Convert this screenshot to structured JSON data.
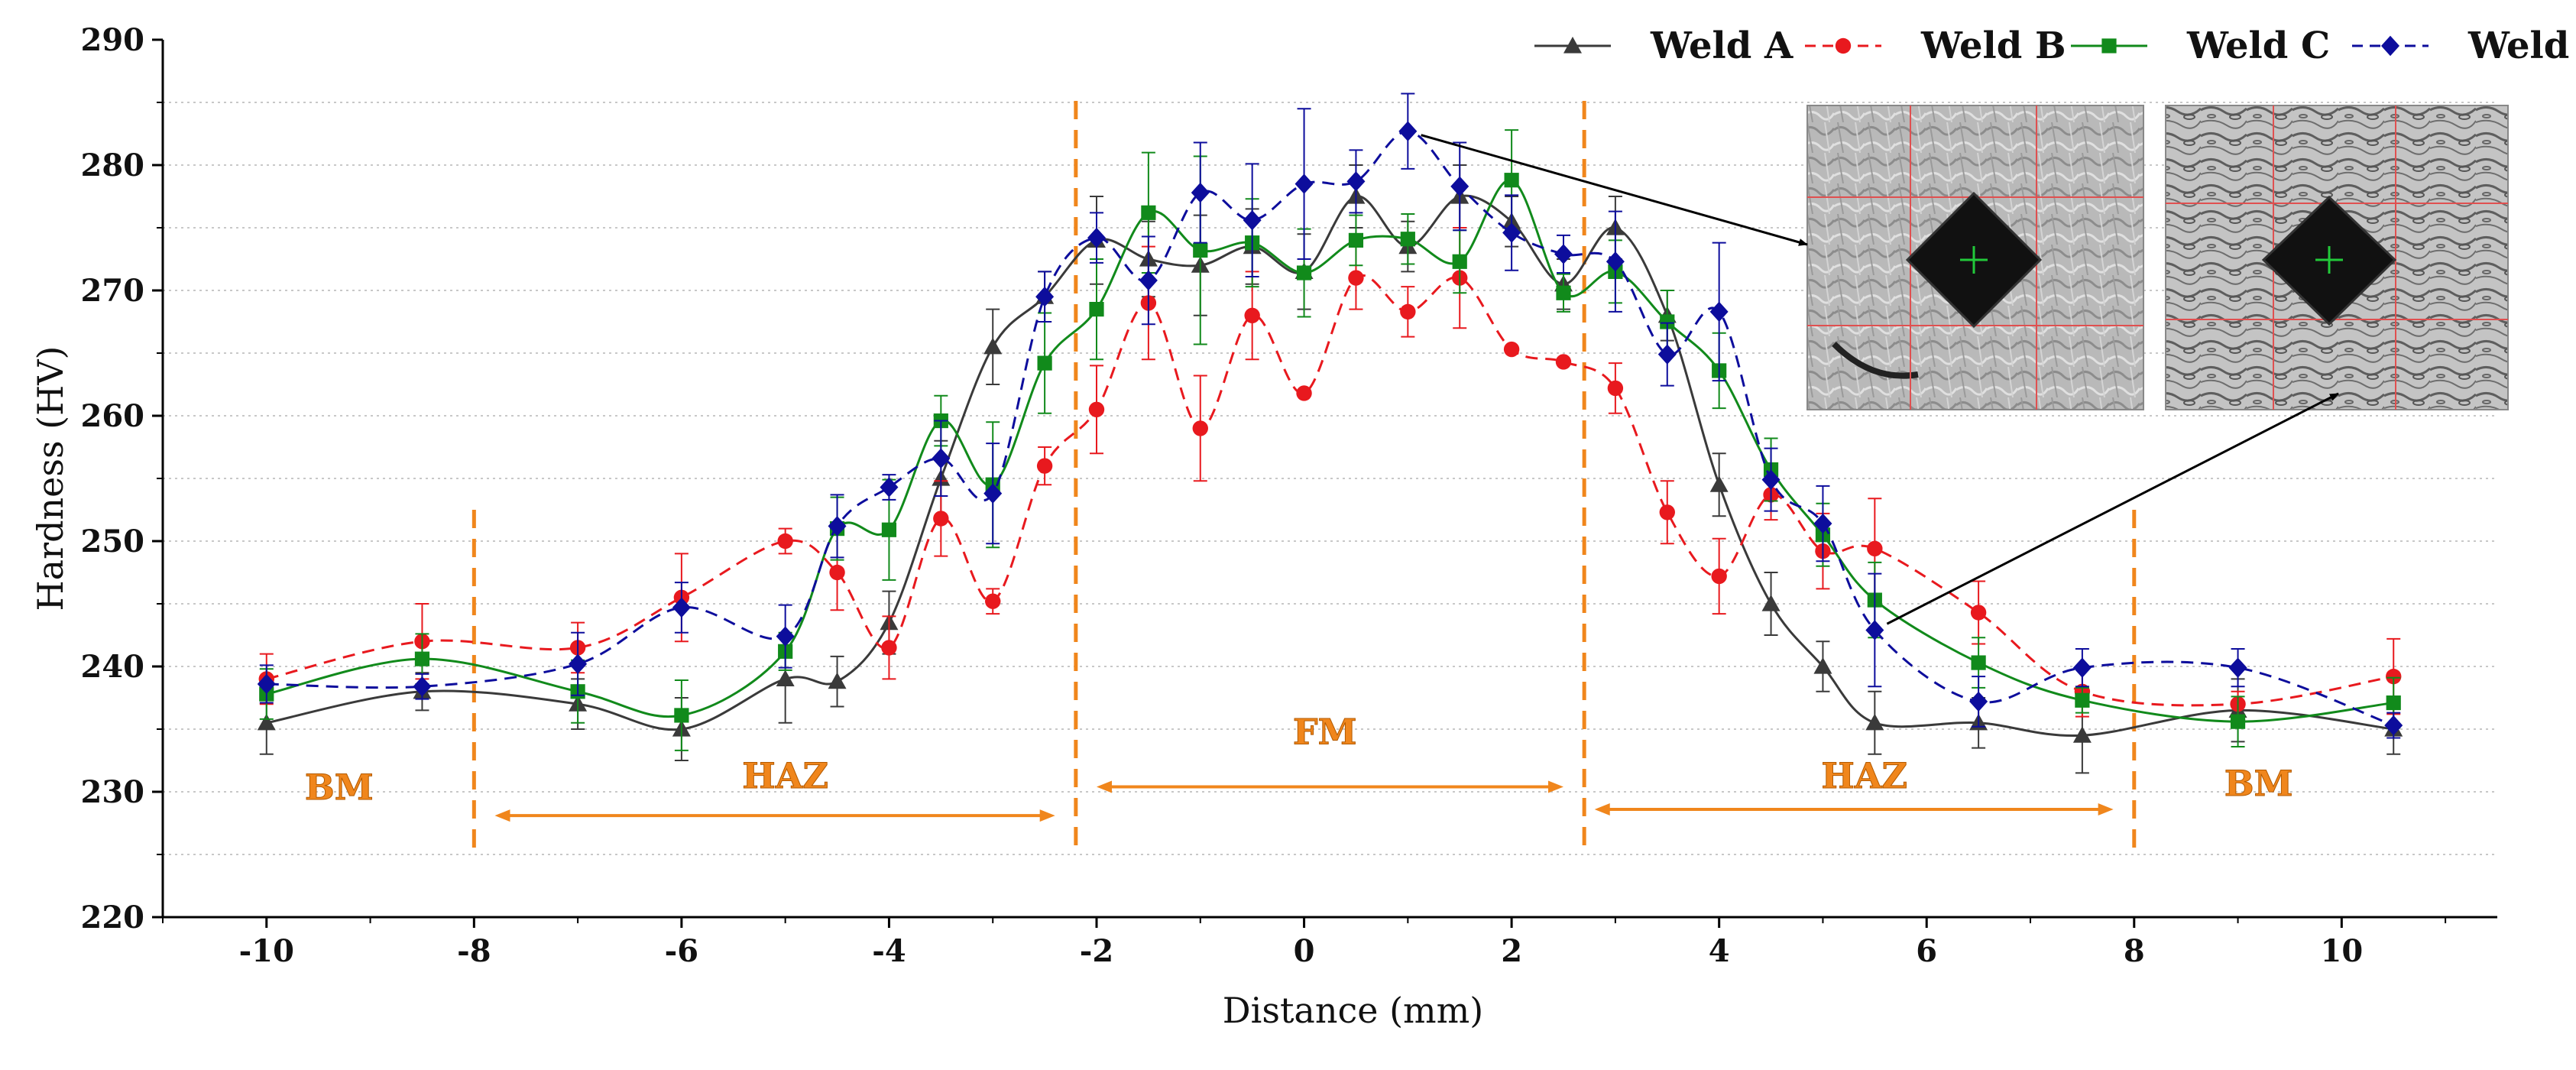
{
  "chart_data": {
    "type": "line",
    "title": "",
    "xlabel": "Distance (mm)",
    "ylabel": "Hardness (HV)",
    "xlim": [
      -11,
      11.5
    ],
    "ylim": [
      220,
      290
    ],
    "xticks": [
      -10,
      -8,
      -6,
      -4,
      -2,
      0,
      2,
      4,
      6,
      8,
      10
    ],
    "yticks": [
      220,
      230,
      240,
      250,
      260,
      270,
      280,
      290
    ],
    "grid": "horizontal dotted",
    "legend_position": "top-right",
    "series": [
      {
        "name": "Weld A",
        "color": "#3a3a3a",
        "marker": "triangle",
        "line_style": "solid",
        "points": [
          {
            "x": -10,
            "y": 235.5,
            "err": 2.5
          },
          {
            "x": -8.5,
            "y": 238,
            "err": 1.5
          },
          {
            "x": -7,
            "y": 237,
            "err": 2
          },
          {
            "x": -6,
            "y": 235,
            "err": 2.5
          },
          {
            "x": -5,
            "y": 239,
            "err": 3.5
          },
          {
            "x": -4.5,
            "y": 238.8,
            "err": 2
          },
          {
            "x": -4,
            "y": 243.5,
            "err": 2.5
          },
          {
            "x": -3.5,
            "y": 255,
            "err": 3
          },
          {
            "x": -3,
            "y": 265.5,
            "err": 3
          },
          {
            "x": -2.5,
            "y": 269.5,
            "err": 2
          },
          {
            "x": -2,
            "y": 274,
            "err": 3.5
          },
          {
            "x": -1.5,
            "y": 272.5,
            "err": 3
          },
          {
            "x": -1,
            "y": 272,
            "err": 4
          },
          {
            "x": -0.5,
            "y": 273.5,
            "err": 3
          },
          {
            "x": 0,
            "y": 271.5,
            "err": 3
          },
          {
            "x": 0.5,
            "y": 277.5,
            "err": 2.5
          },
          {
            "x": 1,
            "y": 273.5,
            "err": 2
          },
          {
            "x": 1.5,
            "y": 277.5,
            "err": 2.5
          },
          {
            "x": 2,
            "y": 275.5,
            "err": 2
          },
          {
            "x": 2.5,
            "y": 270.5,
            "err": 2
          },
          {
            "x": 3,
            "y": 275,
            "err": 2.5
          },
          {
            "x": 3.5,
            "y": 268,
            "err": 2
          },
          {
            "x": 4,
            "y": 254.5,
            "err": 2.5
          },
          {
            "x": 4.5,
            "y": 245,
            "err": 2.5
          },
          {
            "x": 5,
            "y": 240,
            "err": 2
          },
          {
            "x": 5.5,
            "y": 235.5,
            "err": 2.5
          },
          {
            "x": 6.5,
            "y": 235.5,
            "err": 2
          },
          {
            "x": 7.5,
            "y": 234.5,
            "err": 3
          },
          {
            "x": 9,
            "y": 236.5,
            "err": 2.5
          },
          {
            "x": 10.5,
            "y": 235,
            "err": 2
          }
        ]
      },
      {
        "name": "Weld B",
        "color": "#e8191e",
        "marker": "circle",
        "line_style": "dashed",
        "points": [
          {
            "x": -10,
            "y": 239,
            "err": 2
          },
          {
            "x": -8.5,
            "y": 242,
            "err": 3
          },
          {
            "x": -7,
            "y": 241.5,
            "err": 2
          },
          {
            "x": -6,
            "y": 245.5,
            "err": 3.5
          },
          {
            "x": -5,
            "y": 250,
            "err": 1
          },
          {
            "x": -4.5,
            "y": 247.5,
            "err": 3
          },
          {
            "x": -4,
            "y": 241.5,
            "err": 2.5
          },
          {
            "x": -3.5,
            "y": 251.8,
            "err": 3
          },
          {
            "x": -3,
            "y": 245.2,
            "err": 1
          },
          {
            "x": -2.5,
            "y": 256,
            "err": 1.5
          },
          {
            "x": -2,
            "y": 260.5,
            "err": 3.5
          },
          {
            "x": -1.5,
            "y": 269,
            "err": 4.5
          },
          {
            "x": -1,
            "y": 259,
            "err": 4.2
          },
          {
            "x": -0.5,
            "y": 268,
            "err": 3.5
          },
          {
            "x": 0,
            "y": 261.8,
            "err": 0
          },
          {
            "x": 0.5,
            "y": 271,
            "err": 2.5
          },
          {
            "x": 1,
            "y": 268.3,
            "err": 2
          },
          {
            "x": 1.5,
            "y": 271,
            "err": 4
          },
          {
            "x": 2,
            "y": 265.3,
            "err": 0
          },
          {
            "x": 2.5,
            "y": 264.3,
            "err": 0
          },
          {
            "x": 3,
            "y": 262.2,
            "err": 2
          },
          {
            "x": 3.5,
            "y": 252.3,
            "err": 2.5
          },
          {
            "x": 4,
            "y": 247.2,
            "err": 3
          },
          {
            "x": 4.5,
            "y": 253.7,
            "err": 2
          },
          {
            "x": 5,
            "y": 249.2,
            "err": 3
          },
          {
            "x": 5.5,
            "y": 249.4,
            "err": 4
          },
          {
            "x": 6.5,
            "y": 244.3,
            "err": 2.5
          },
          {
            "x": 7.5,
            "y": 238,
            "err": 2
          },
          {
            "x": 9,
            "y": 237,
            "err": 1
          },
          {
            "x": 10.5,
            "y": 239.2,
            "err": 3
          }
        ]
      },
      {
        "name": "Weld C",
        "color": "#118a1b",
        "marker": "square",
        "line_style": "solid",
        "points": [
          {
            "x": -10,
            "y": 237.8,
            "err": 2
          },
          {
            "x": -8.5,
            "y": 240.6,
            "err": 2
          },
          {
            "x": -7,
            "y": 238,
            "err": 2.5
          },
          {
            "x": -6,
            "y": 236.1,
            "err": 2.8
          },
          {
            "x": -5,
            "y": 241.2,
            "err": 1.5
          },
          {
            "x": -4.5,
            "y": 251,
            "err": 2.5
          },
          {
            "x": -4,
            "y": 250.9,
            "err": 4
          },
          {
            "x": -3.5,
            "y": 259.6,
            "err": 2
          },
          {
            "x": -3,
            "y": 254.5,
            "err": 5
          },
          {
            "x": -2.5,
            "y": 264.2,
            "err": 4
          },
          {
            "x": -2,
            "y": 268.5,
            "err": 4
          },
          {
            "x": -1.5,
            "y": 276.2,
            "err": 4.8
          },
          {
            "x": -1,
            "y": 273.2,
            "err": 7.5
          },
          {
            "x": -0.5,
            "y": 273.8,
            "err": 3.5
          },
          {
            "x": 0,
            "y": 271.4,
            "err": 3.5
          },
          {
            "x": 0.5,
            "y": 274,
            "err": 2
          },
          {
            "x": 1,
            "y": 274.1,
            "err": 2
          },
          {
            "x": 1.5,
            "y": 272.3,
            "err": 2.5
          },
          {
            "x": 2,
            "y": 278.8,
            "err": 4
          },
          {
            "x": 2.5,
            "y": 269.8,
            "err": 1.5
          },
          {
            "x": 3,
            "y": 271.5,
            "err": 2.5
          },
          {
            "x": 3.5,
            "y": 267.5,
            "err": 2.5
          },
          {
            "x": 4,
            "y": 263.6,
            "err": 3
          },
          {
            "x": 4.5,
            "y": 255.7,
            "err": 2.5
          },
          {
            "x": 5,
            "y": 250.5,
            "err": 2.5
          },
          {
            "x": 5.5,
            "y": 245.3,
            "err": 3
          },
          {
            "x": 6.5,
            "y": 240.3,
            "err": 2
          },
          {
            "x": 7.5,
            "y": 237.3,
            "err": 1
          },
          {
            "x": 9,
            "y": 235.6,
            "err": 2
          },
          {
            "x": 10.5,
            "y": 237.1,
            "err": 2
          }
        ]
      },
      {
        "name": "Weld D",
        "color": "#0d0d9c",
        "marker": "diamond",
        "line_style": "dashed",
        "points": [
          {
            "x": -10,
            "y": 238.6,
            "err": 1.5
          },
          {
            "x": -8.5,
            "y": 238.4,
            "err": 1
          },
          {
            "x": -7,
            "y": 240.2,
            "err": 2.5
          },
          {
            "x": -6,
            "y": 244.7,
            "err": 2
          },
          {
            "x": -5,
            "y": 242.4,
            "err": 2.5
          },
          {
            "x": -4.5,
            "y": 251.2,
            "err": 2.5
          },
          {
            "x": -4,
            "y": 254.3,
            "err": 1
          },
          {
            "x": -3.5,
            "y": 256.6,
            "err": 3
          },
          {
            "x": -3,
            "y": 253.8,
            "err": 4
          },
          {
            "x": -2.5,
            "y": 269.5,
            "err": 2
          },
          {
            "x": -2,
            "y": 274.2,
            "err": 2
          },
          {
            "x": -1.5,
            "y": 270.8,
            "err": 3.5
          },
          {
            "x": -1,
            "y": 277.8,
            "err": 4
          },
          {
            "x": -0.5,
            "y": 275.6,
            "err": 4.5
          },
          {
            "x": 0,
            "y": 278.5,
            "err": 6
          },
          {
            "x": 0.5,
            "y": 278.7,
            "err": 2.5
          },
          {
            "x": 1,
            "y": 282.7,
            "err": 3
          },
          {
            "x": 1.5,
            "y": 278.3,
            "err": 3.5
          },
          {
            "x": 2,
            "y": 274.6,
            "err": 3
          },
          {
            "x": 2.5,
            "y": 272.9,
            "err": 1.5
          },
          {
            "x": 3,
            "y": 272.3,
            "err": 4
          },
          {
            "x": 3.5,
            "y": 264.9,
            "err": 2.5
          },
          {
            "x": 4,
            "y": 268.3,
            "err": 5.5
          },
          {
            "x": 4.5,
            "y": 254.9,
            "err": 2.5
          },
          {
            "x": 5,
            "y": 251.4,
            "err": 3
          },
          {
            "x": 5.5,
            "y": 242.9,
            "err": 4.5
          },
          {
            "x": 6.5,
            "y": 237.2,
            "err": 2
          },
          {
            "x": 7.5,
            "y": 239.9,
            "err": 1.5
          },
          {
            "x": 9,
            "y": 239.9,
            "err": 1.5
          },
          {
            "x": 10.5,
            "y": 235.3,
            "err": 1
          }
        ]
      }
    ],
    "region_boundaries_x": [
      -8,
      -2.2,
      2.7,
      8
    ],
    "regions": [
      {
        "label": "BM",
        "x": -9.3,
        "y": 229.4
      },
      {
        "label": "HAZ",
        "x": -5,
        "y": 230.3
      },
      {
        "label": "FM",
        "x": 0.2,
        "y": 233.8
      },
      {
        "label": "HAZ",
        "x": 5.4,
        "y": 230.3
      },
      {
        "label": "BM",
        "x": 9.2,
        "y": 229.7
      }
    ],
    "region_arrows": [
      {
        "from": -7.8,
        "to": -2.4,
        "y": 228.1
      },
      {
        "from": -2.0,
        "to": 2.5,
        "y": 230.4
      },
      {
        "from": 2.8,
        "to": 7.8,
        "y": 228.6
      }
    ],
    "insets": [
      {
        "name": "micrograph-fm",
        "points_from": {
          "x": 1,
          "y": 282.7
        }
      },
      {
        "name": "micrograph-haz",
        "points_from": {
          "x": 5.5,
          "y": 242.9
        }
      }
    ]
  }
}
